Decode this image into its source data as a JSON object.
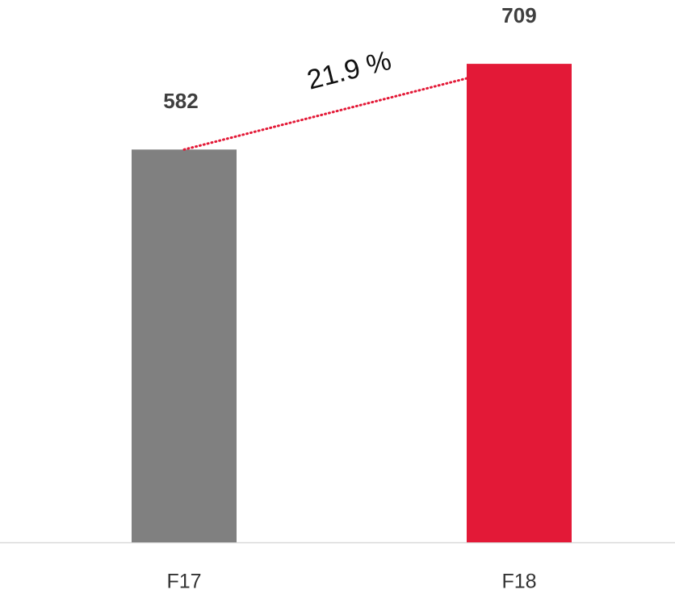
{
  "chart_data": {
    "type": "bar",
    "categories": [
      "F17",
      "F18"
    ],
    "values": [
      582,
      709
    ],
    "colors": [
      "#808080",
      "#e31937"
    ],
    "annotation": "21.9 %",
    "ylim": [
      0,
      800
    ]
  }
}
